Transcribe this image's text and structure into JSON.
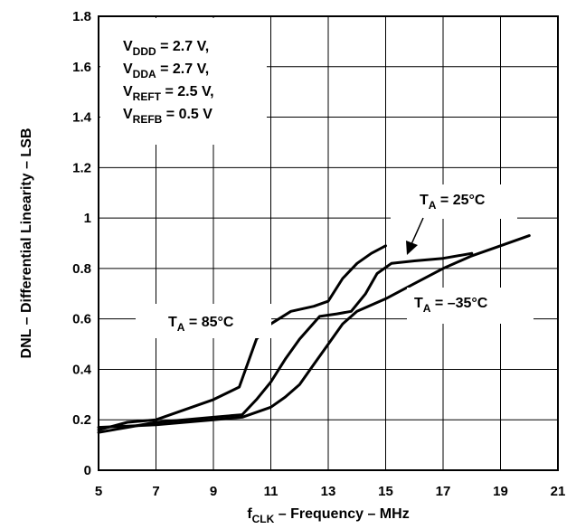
{
  "chart_data": {
    "type": "line",
    "xlabel": {
      "prefix": "f",
      "sub": "CLK",
      "rest": " – Frequency – MHz"
    },
    "ylabel": "DNL – Differential Linearity – LSB",
    "xlim": [
      5,
      21
    ],
    "ylim": [
      0,
      1.8
    ],
    "xticks": [
      "5",
      "7",
      "9",
      "11",
      "13",
      "15",
      "17",
      "19",
      "21"
    ],
    "yticks": [
      "0",
      "0.2",
      "0.4",
      "0.6",
      "0.8",
      "1",
      "1.2",
      "1.4",
      "1.6",
      "1.8"
    ],
    "grid": true,
    "conditions": [
      {
        "main": "V",
        "sub": "DDD",
        "rest": " = 2.7 V,"
      },
      {
        "main": "V",
        "sub": "DDA",
        "rest": " = 2.7 V,"
      },
      {
        "main": "V",
        "sub": "REFT",
        "rest": " = 2.5 V,"
      },
      {
        "main": "V",
        "sub": "REFB",
        "rest": " = 0.5 V"
      }
    ],
    "series": [
      {
        "label": {
          "main": "T",
          "sub": "A",
          "rest": " = 85°C"
        },
        "points": [
          [
            5,
            0.16
          ],
          [
            6,
            0.19
          ],
          [
            7,
            0.2
          ],
          [
            8,
            0.24
          ],
          [
            9,
            0.28
          ],
          [
            9.9,
            0.33
          ],
          [
            10.5,
            0.52
          ],
          [
            11,
            0.58
          ],
          [
            11.7,
            0.63
          ],
          [
            12.5,
            0.65
          ],
          [
            13,
            0.67
          ],
          [
            13.5,
            0.76
          ],
          [
            14,
            0.82
          ],
          [
            14.5,
            0.86
          ],
          [
            15,
            0.89
          ]
        ]
      },
      {
        "label": {
          "main": "T",
          "sub": "A",
          "rest": " = 25°C"
        },
        "points": [
          [
            5,
            0.15
          ],
          [
            6,
            0.17
          ],
          [
            7,
            0.19
          ],
          [
            8,
            0.2
          ],
          [
            9,
            0.21
          ],
          [
            10,
            0.22
          ],
          [
            10.5,
            0.28
          ],
          [
            11,
            0.35
          ],
          [
            11.5,
            0.44
          ],
          [
            12,
            0.52
          ],
          [
            12.7,
            0.61
          ],
          [
            13.3,
            0.62
          ],
          [
            13.8,
            0.63
          ],
          [
            14.3,
            0.7
          ],
          [
            14.7,
            0.78
          ],
          [
            15.2,
            0.82
          ],
          [
            16,
            0.83
          ],
          [
            17,
            0.84
          ],
          [
            18,
            0.86
          ]
        ]
      },
      {
        "label": {
          "main": "T",
          "sub": "A",
          "rest": " = –35°C"
        },
        "points": [
          [
            5,
            0.17
          ],
          [
            6,
            0.175
          ],
          [
            7,
            0.18
          ],
          [
            8,
            0.19
          ],
          [
            9,
            0.2
          ],
          [
            10,
            0.21
          ],
          [
            11,
            0.25
          ],
          [
            11.5,
            0.29
          ],
          [
            12,
            0.34
          ],
          [
            12.5,
            0.42
          ],
          [
            13,
            0.5
          ],
          [
            13.5,
            0.58
          ],
          [
            14,
            0.63
          ],
          [
            15,
            0.68
          ],
          [
            16,
            0.74
          ],
          [
            17,
            0.8
          ],
          [
            18,
            0.85
          ],
          [
            19,
            0.89
          ],
          [
            20,
            0.93
          ]
        ]
      }
    ]
  }
}
